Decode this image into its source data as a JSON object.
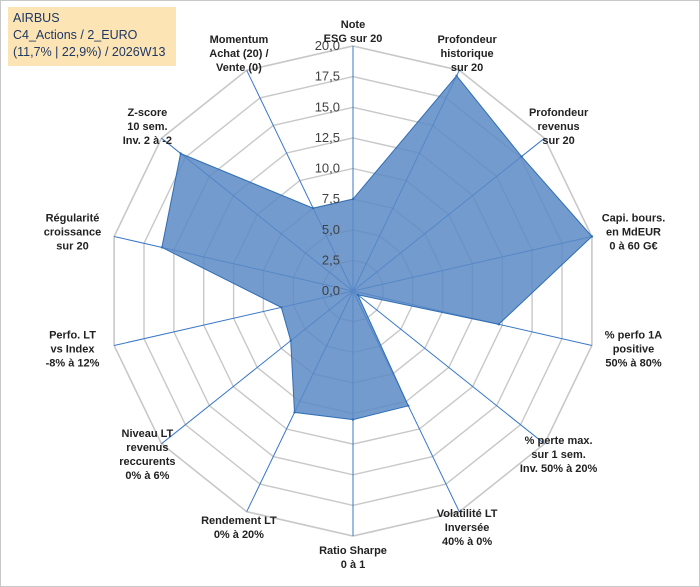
{
  "title": {
    "line1": "AIRBUS",
    "line2": "C4_Actions / 2_EURO",
    "line3": "(11,7% | 22,9%) / 2026W13"
  },
  "colors": {
    "fill": "#5b8ac6",
    "stroke": "#2f6eb5",
    "grid": "#c8c8c8",
    "spoke": "#3a78c8",
    "title_bg": "#fce4b4"
  },
  "chart_data": {
    "type": "radar",
    "range": [
      0,
      20
    ],
    "tick_step": 2.5,
    "tick_labels": [
      "0,0",
      "2,5",
      "5,0",
      "7,5",
      "10,0",
      "12,5",
      "15,0",
      "17,5",
      "20,0"
    ],
    "axes": [
      {
        "label": [
          "Note",
          "ESG sur 20"
        ]
      },
      {
        "label": [
          "Profondeur",
          "historique",
          "sur 20"
        ]
      },
      {
        "label": [
          "Profondeur",
          "revenus",
          "sur 20"
        ]
      },
      {
        "label": [
          "Capi. bours.",
          "en MdEUR",
          "0 à 60 G€"
        ]
      },
      {
        "label": [
          "% perfo 1A",
          "positive",
          "50% à 80%"
        ]
      },
      {
        "label": [
          "% perte max.",
          "sur 1 sem.",
          "Inv. 50% à 20%"
        ]
      },
      {
        "label": [
          "Volatilité LT",
          "Inversée",
          "40% à 0%"
        ]
      },
      {
        "label": [
          "Ratio Sharpe",
          "0 à 1"
        ]
      },
      {
        "label": [
          "Rendement LT",
          "0% à 20%"
        ]
      },
      {
        "label": [
          "Niveau LT",
          "revenus",
          "reccurents",
          "0% à 6%"
        ]
      },
      {
        "label": [
          "Perfo. LT",
          "vs Index",
          "-8% à 12%"
        ]
      },
      {
        "label": [
          "Régularité",
          "croissance",
          "sur 20"
        ]
      },
      {
        "label": [
          "Z-score",
          "10 sem.",
          "Inv. 2 à -2"
        ]
      },
      {
        "label": [
          "Momentum",
          "Achat (20) /",
          "Vente (0)"
        ]
      }
    ],
    "series": [
      {
        "name": "AIRBUS",
        "values": [
          7.5,
          19.5,
          17.6,
          20.0,
          12.2,
          0.5,
          10.4,
          10.5,
          11.0,
          6.5,
          6.0,
          16.0,
          18.0,
          7.5
        ]
      }
    ]
  }
}
